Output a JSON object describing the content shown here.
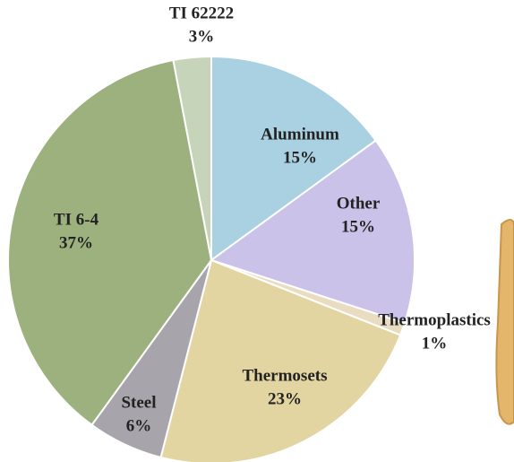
{
  "chart_data": {
    "type": "pie",
    "categories": [
      "Aluminum",
      "Other",
      "Thermoplastics",
      "Thermosets",
      "Steel",
      "TI 6-4",
      "TI 62222"
    ],
    "values": [
      15,
      15,
      1,
      23,
      6,
      37,
      3
    ],
    "value_labels": [
      "15%",
      "15%",
      "1%",
      "23%",
      "6%",
      "37%",
      "3%"
    ],
    "colors": [
      "#a9d1e1",
      "#cac2e8",
      "#e9dcc0",
      "#e3d5a1",
      "#a8a4ab",
      "#9cb17d",
      "#c6d5b9"
    ]
  }
}
